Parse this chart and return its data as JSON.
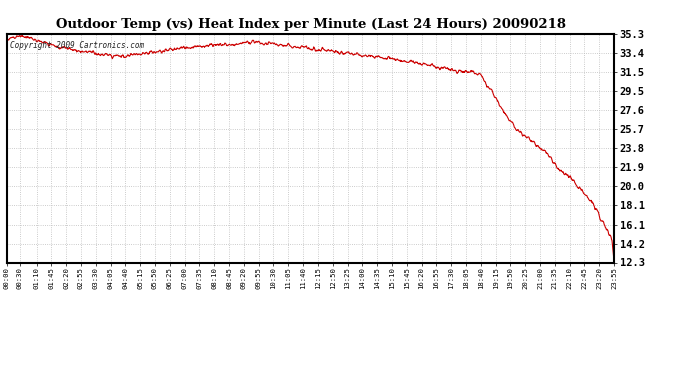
{
  "title": "Outdoor Temp (vs) Heat Index per Minute (Last 24 Hours) 20090218",
  "copyright_text": "Copyright 2009 Cartronics.com",
  "line_color": "#cc0000",
  "bg_color": "#ffffff",
  "plot_bg_color": "#ffffff",
  "grid_color": "#bbbbbb",
  "ytick_values": [
    35.3,
    33.4,
    31.5,
    29.5,
    27.6,
    25.7,
    23.8,
    21.9,
    20.0,
    18.1,
    16.1,
    14.2,
    12.3
  ],
  "ymin": 12.3,
  "ymax": 35.3,
  "xtick_labels": [
    "00:00",
    "00:30",
    "01:10",
    "01:45",
    "02:20",
    "02:55",
    "03:30",
    "04:05",
    "04:40",
    "05:15",
    "05:50",
    "06:25",
    "07:00",
    "07:35",
    "08:10",
    "08:45",
    "09:20",
    "09:55",
    "10:30",
    "11:05",
    "11:40",
    "12:15",
    "12:50",
    "13:25",
    "14:00",
    "14:35",
    "15:10",
    "15:45",
    "16:20",
    "16:55",
    "17:30",
    "18:05",
    "18:40",
    "19:15",
    "19:50",
    "20:25",
    "21:00",
    "21:35",
    "22:10",
    "22:45",
    "23:20",
    "23:55"
  ],
  "xtick_positions": [
    0,
    30,
    70,
    105,
    140,
    175,
    210,
    245,
    280,
    315,
    350,
    385,
    420,
    455,
    490,
    525,
    560,
    595,
    630,
    665,
    700,
    735,
    770,
    805,
    840,
    875,
    910,
    945,
    980,
    1015,
    1050,
    1085,
    1120,
    1155,
    1190,
    1225,
    1260,
    1295,
    1330,
    1365,
    1400,
    1435
  ],
  "key_x": [
    0,
    10,
    20,
    30,
    40,
    60,
    80,
    100,
    120,
    140,
    160,
    180,
    200,
    220,
    240,
    260,
    280,
    300,
    320,
    340,
    360,
    380,
    400,
    420,
    440,
    460,
    480,
    500,
    520,
    540,
    560,
    580,
    600,
    620,
    640,
    660,
    680,
    700,
    720,
    740,
    760,
    780,
    800,
    820,
    840,
    860,
    880,
    900,
    920,
    940,
    960,
    980,
    1000,
    1020,
    1040,
    1050,
    1060,
    1070,
    1080,
    1090,
    1100,
    1110,
    1120,
    1130,
    1140,
    1150,
    1160,
    1170,
    1180,
    1190,
    1200,
    1210,
    1220,
    1230,
    1240,
    1250,
    1260,
    1270,
    1280,
    1290,
    1300,
    1310,
    1320,
    1330,
    1340,
    1350,
    1360,
    1370,
    1380,
    1390,
    1400,
    1410,
    1420,
    1430,
    1435
  ],
  "key_y": [
    34.7,
    34.9,
    35.1,
    35.2,
    35.0,
    34.8,
    34.5,
    34.3,
    34.0,
    33.9,
    33.7,
    33.5,
    33.4,
    33.3,
    33.2,
    33.1,
    33.0,
    33.2,
    33.3,
    33.4,
    33.5,
    33.7,
    33.8,
    33.9,
    34.0,
    34.1,
    34.2,
    34.3,
    34.2,
    34.3,
    34.4,
    34.5,
    34.4,
    34.3,
    34.2,
    34.1,
    34.0,
    33.9,
    33.8,
    33.7,
    33.6,
    33.5,
    33.4,
    33.3,
    33.2,
    33.0,
    32.9,
    32.8,
    32.7,
    32.5,
    32.4,
    32.3,
    32.1,
    32.0,
    31.8,
    31.7,
    31.6,
    31.5,
    31.6,
    31.5,
    31.4,
    31.3,
    31.2,
    30.5,
    29.8,
    29.2,
    28.5,
    27.8,
    27.2,
    26.5,
    25.9,
    25.5,
    25.2,
    24.8,
    24.5,
    24.2,
    23.8,
    23.5,
    23.0,
    22.5,
    21.8,
    21.5,
    21.2,
    20.8,
    20.5,
    20.0,
    19.5,
    19.0,
    18.5,
    17.8,
    17.0,
    16.2,
    15.5,
    14.5,
    12.3
  ],
  "noise_seed": 7,
  "noise_std": 0.18
}
